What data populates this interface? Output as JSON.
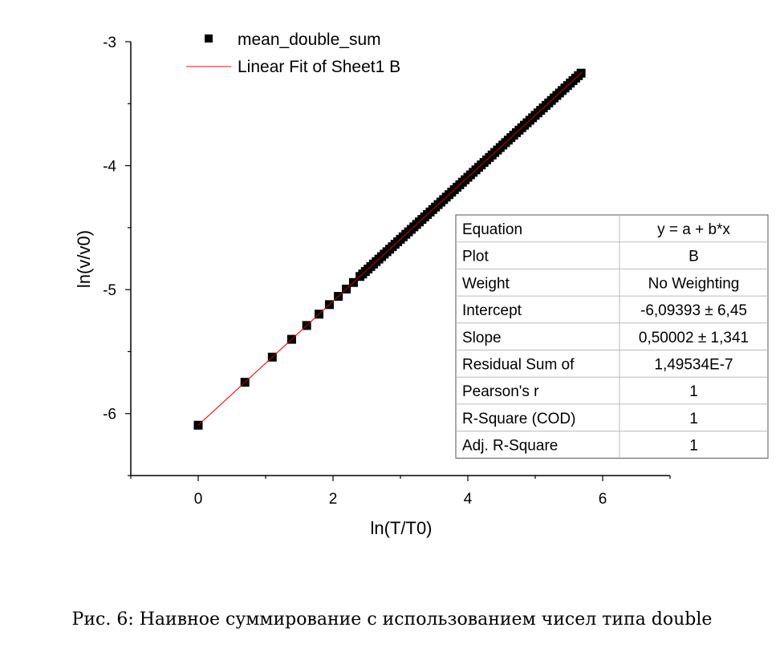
{
  "chart_data": {
    "type": "scatter",
    "xlabel": "ln(T/T0)",
    "ylabel": "ln(v/v0)",
    "xlim": [
      -1,
      7
    ],
    "ylim": [
      -6.5,
      -3
    ],
    "xticks": [
      0,
      2,
      4,
      6
    ],
    "yticks": [
      -6,
      -5,
      -4,
      -3
    ],
    "legend": {
      "placement": "top-left",
      "entries": [
        "mean_double_sum",
        "Linear Fit of Sheet1 B"
      ]
    },
    "series": [
      {
        "name": "mean_double_sum",
        "marker": "square",
        "color": "#000000",
        "points_note": "",
        "x": [
          0,
          0.693,
          1.099,
          1.386,
          1.609,
          1.792,
          1.946,
          2.079,
          2.197,
          2.303
        ],
        "x_dense_range": [
          2.4,
          5.7
        ]
      },
      {
        "name": "Linear Fit of Sheet1 B",
        "color": "#ff0000",
        "intercept": -6.09393,
        "slope": 0.50002,
        "x_range": [
          0,
          5.7
        ]
      }
    ],
    "stats_table": [
      {
        "label": "Equation",
        "value": "y = a + b*x"
      },
      {
        "label": "Plot",
        "value": "B"
      },
      {
        "label": "Weight",
        "value": "No Weighting"
      },
      {
        "label": "Intercept",
        "value": "-6,09393 ± 6,45"
      },
      {
        "label": "Slope",
        "value": "0,50002 ± 1,341"
      },
      {
        "label": "Residual Sum of",
        "value": "1,49534E-7"
      },
      {
        "label": "Pearson's r",
        "value": "1"
      },
      {
        "label": "R-Square (COD)",
        "value": "1"
      },
      {
        "label": "Adj. R-Square",
        "value": "1"
      }
    ]
  },
  "caption": "Рис. 6: Наивное суммирование с использованием чисел типа double"
}
